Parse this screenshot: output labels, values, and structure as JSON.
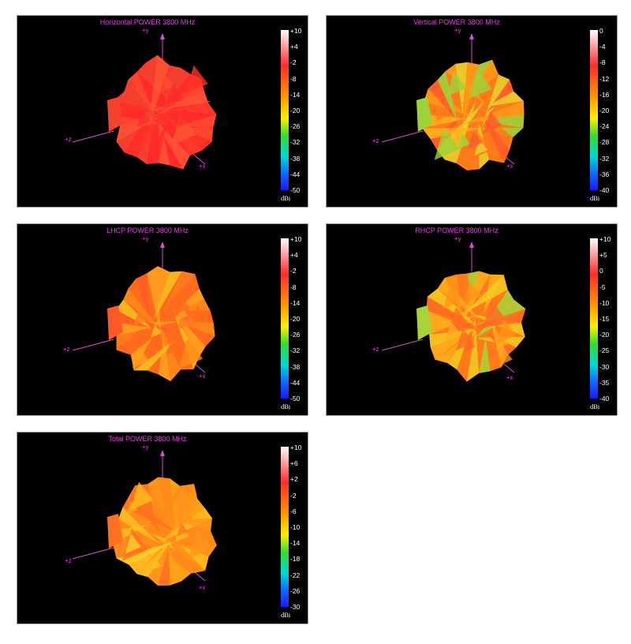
{
  "panels": [
    {
      "id": "horizontal",
      "title": "Horizontal POWER 3800  MHz",
      "axes": {
        "y": "+y",
        "z": "+z",
        "x": "+x"
      },
      "colorbar": {
        "unit": "dBi",
        "ticks": [
          "+10",
          "+4",
          "-2",
          "-8",
          "-14",
          "-20",
          "-26",
          "-32",
          "-38",
          "-44",
          "-50"
        ]
      },
      "palette": [
        "#ff2a2a",
        "#ff3b2a",
        "#ff4a2f",
        "#ff3226",
        "#f2432f",
        "#ff5535"
      ]
    },
    {
      "id": "vertical",
      "title": "Vertical POWER 3800  MHz",
      "axes": {
        "y": "+y",
        "z": "+z",
        "x": "+x"
      },
      "colorbar": {
        "unit": "dBi",
        "ticks": [
          "0",
          "-4",
          "-8",
          "-12",
          "-16",
          "-20",
          "-24",
          "-28",
          "-32",
          "-36",
          "-40"
        ]
      },
      "palette": [
        "#ff7a1a",
        "#ff9a16",
        "#ffb21c",
        "#e8d22a",
        "#9ad43a",
        "#ff5a2a"
      ]
    },
    {
      "id": "lhcp",
      "title": "LHCP POWER 3800  MHz",
      "axes": {
        "y": "+y",
        "z": "+z",
        "x": "+x"
      },
      "colorbar": {
        "unit": "dBi",
        "ticks": [
          "+10",
          "+4",
          "-2",
          "-8",
          "-14",
          "-20",
          "-26",
          "-32",
          "-38",
          "-44",
          "-50"
        ]
      },
      "palette": [
        "#ff6a1c",
        "#ff8a1a",
        "#ffa21e",
        "#f5c11f",
        "#ff5a24",
        "#ff7b20"
      ]
    },
    {
      "id": "rhcp",
      "title": "RHCP POWER 3800  MHz",
      "axes": {
        "y": "+y",
        "z": "+z",
        "x": "+x"
      },
      "colorbar": {
        "unit": "dBi",
        "ticks": [
          "+10",
          "+5",
          "0",
          "-5",
          "-10",
          "-15",
          "-20",
          "-25",
          "-30",
          "-35",
          "-40"
        ]
      },
      "palette": [
        "#ff7a1a",
        "#ff9416",
        "#ffae1c",
        "#f2cc22",
        "#a8d43a",
        "#ff6a22"
      ]
    },
    {
      "id": "total",
      "title": "Total POWER 3800  MHz",
      "axes": {
        "y": "+y",
        "z": "+z",
        "x": "+x"
      },
      "colorbar": {
        "unit": "dBi",
        "ticks": [
          "+10",
          "+6",
          "+2",
          "-2",
          "-6",
          "-10",
          "-14",
          "-18",
          "-22",
          "-26",
          "-30"
        ]
      },
      "palette": [
        "#ff8a1a",
        "#ffa418",
        "#ffbe1e",
        "#ffd22a",
        "#ff7020",
        "#ff951c"
      ]
    }
  ]
}
